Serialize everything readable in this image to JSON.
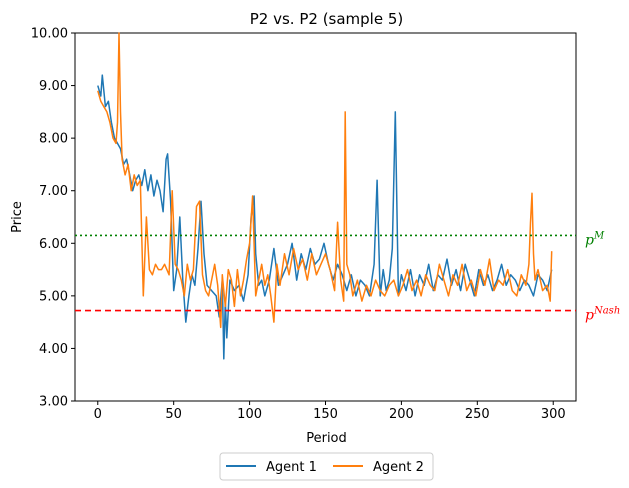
{
  "chart_data": {
    "type": "line",
    "title": "P2 vs. P2 (sample 5)",
    "xlabel": "Period",
    "ylabel": "Price",
    "xlim": [
      -15,
      315
    ],
    "ylim": [
      3.0,
      10.0
    ],
    "xticks": [
      0,
      50,
      100,
      150,
      200,
      250,
      300
    ],
    "xtick_labels": [
      "0",
      "50",
      "100",
      "150",
      "200",
      "250",
      "300"
    ],
    "yticks": [
      3,
      4,
      5,
      6,
      7,
      8,
      9,
      10
    ],
    "ytick_labels": [
      "3.00",
      "4.00",
      "5.00",
      "6.00",
      "7.00",
      "8.00",
      "9.00",
      "10.00"
    ],
    "legend_position": "bottom-center",
    "reference_lines": [
      {
        "name": "monopoly",
        "label_base": "p",
        "label_sup": "M",
        "y": 6.15,
        "color": "#008000",
        "style": "dotted"
      },
      {
        "name": "nash",
        "label_base": "p",
        "label_sup": "Nash",
        "y": 4.72,
        "color": "#ff0000",
        "style": "dashed"
      }
    ],
    "series": [
      {
        "name": "Agent 1",
        "color": "#1f77b4",
        "x": [
          0,
          2,
          3,
          5,
          7,
          9,
          11,
          13,
          15,
          17,
          19,
          21,
          23,
          25,
          27,
          29,
          31,
          33,
          35,
          37,
          39,
          41,
          43,
          45,
          46,
          48,
          50,
          52,
          54,
          56,
          58,
          60,
          62,
          64,
          66,
          68,
          70,
          72,
          75,
          78,
          80,
          82,
          83,
          84,
          85,
          87,
          90,
          93,
          96,
          99,
          101,
          103,
          104,
          106,
          108,
          110,
          113,
          116,
          119,
          122,
          125,
          128,
          131,
          134,
          137,
          140,
          143,
          146,
          149,
          152,
          155,
          158,
          161,
          164,
          167,
          170,
          173,
          176,
          179,
          182,
          184,
          186,
          188,
          190,
          192,
          194,
          196,
          198,
          200,
          203,
          206,
          209,
          212,
          215,
          218,
          221,
          224,
          227,
          230,
          233,
          236,
          239,
          242,
          245,
          248,
          251,
          254,
          257,
          260,
          263,
          266,
          269,
          272,
          275,
          278,
          281,
          284,
          287,
          290,
          293,
          296,
          299
        ],
        "values": [
          9.0,
          8.8,
          9.2,
          8.6,
          8.7,
          8.3,
          8.0,
          7.9,
          7.8,
          7.5,
          7.6,
          7.3,
          7.0,
          7.2,
          7.3,
          7.1,
          7.4,
          7.0,
          7.3,
          6.9,
          7.2,
          7.0,
          6.6,
          7.6,
          7.7,
          6.8,
          5.1,
          5.5,
          6.5,
          5.3,
          4.5,
          5.0,
          5.4,
          5.2,
          5.9,
          6.8,
          5.8,
          5.2,
          5.1,
          5.0,
          4.6,
          5.3,
          3.8,
          4.9,
          4.2,
          5.3,
          5.1,
          5.2,
          4.9,
          5.4,
          6.5,
          6.9,
          5.8,
          5.2,
          5.3,
          5.0,
          5.3,
          5.9,
          5.2,
          5.4,
          5.6,
          6.0,
          5.3,
          5.8,
          5.5,
          5.9,
          5.6,
          5.7,
          6.0,
          5.6,
          5.3,
          5.6,
          5.4,
          5.1,
          5.4,
          5.0,
          5.3,
          5.2,
          5.0,
          5.6,
          7.2,
          5.0,
          5.5,
          5.1,
          5.3,
          5.9,
          8.5,
          5.0,
          5.4,
          5.1,
          5.5,
          5.0,
          5.4,
          5.2,
          5.6,
          5.1,
          5.4,
          5.3,
          5.7,
          5.2,
          5.5,
          5.1,
          5.6,
          5.3,
          5.0,
          5.5,
          5.2,
          5.4,
          5.1,
          5.3,
          5.6,
          5.2,
          5.4,
          5.3,
          5.1,
          5.3,
          5.2,
          5.0,
          5.4,
          5.3,
          5.1,
          5.5
        ]
      },
      {
        "name": "Agent 2",
        "color": "#ff7f0e",
        "x": [
          0,
          2,
          4,
          6,
          8,
          10,
          12,
          13,
          14,
          15,
          16,
          18,
          20,
          22,
          24,
          26,
          28,
          30,
          32,
          34,
          36,
          38,
          40,
          42,
          44,
          47,
          49,
          51,
          53,
          55,
          57,
          59,
          61,
          63,
          65,
          67,
          69,
          71,
          73,
          75,
          77,
          79,
          81,
          82,
          84,
          86,
          88,
          90,
          92,
          94,
          96,
          98,
          100,
          102,
          104,
          106,
          108,
          110,
          112,
          114,
          116,
          118,
          120,
          123,
          126,
          129,
          132,
          135,
          138,
          141,
          144,
          147,
          150,
          153,
          156,
          158,
          160,
          162,
          163,
          164,
          166,
          168,
          171,
          174,
          177,
          180,
          183,
          186,
          189,
          192,
          195,
          198,
          201,
          204,
          207,
          210,
          213,
          216,
          219,
          222,
          225,
          228,
          231,
          234,
          237,
          240,
          243,
          246,
          249,
          252,
          255,
          258,
          261,
          264,
          267,
          270,
          273,
          276,
          279,
          282,
          284,
          285,
          286,
          287,
          288,
          290,
          293,
          296,
          298,
          299
        ],
        "values": [
          8.9,
          8.7,
          8.6,
          8.5,
          8.3,
          8.0,
          7.9,
          8.3,
          10.0,
          8.5,
          7.6,
          7.3,
          7.5,
          7.0,
          7.3,
          7.1,
          7.2,
          5.0,
          6.5,
          5.5,
          5.4,
          5.6,
          5.5,
          5.5,
          5.6,
          5.4,
          7.0,
          5.6,
          5.5,
          5.3,
          5.0,
          5.6,
          5.3,
          5.5,
          6.7,
          6.8,
          5.4,
          5.1,
          5.0,
          5.3,
          5.6,
          5.2,
          4.4,
          5.4,
          4.8,
          5.5,
          5.3,
          4.8,
          5.5,
          5.0,
          5.3,
          5.7,
          6.0,
          6.9,
          5.0,
          5.3,
          5.6,
          5.2,
          5.4,
          5.0,
          4.5,
          5.6,
          5.2,
          5.8,
          5.4,
          5.9,
          5.5,
          5.7,
          5.3,
          5.8,
          5.4,
          5.6,
          5.8,
          5.5,
          5.1,
          6.4,
          5.3,
          4.9,
          8.5,
          5.6,
          5.4,
          5.0,
          5.3,
          4.9,
          5.2,
          5.0,
          5.3,
          5.1,
          5.0,
          5.2,
          5.3,
          5.0,
          5.2,
          5.5,
          5.1,
          5.3,
          5.0,
          5.4,
          5.2,
          5.1,
          5.6,
          5.3,
          5.0,
          5.4,
          5.2,
          5.6,
          5.1,
          5.3,
          5.0,
          5.5,
          5.2,
          5.7,
          5.1,
          5.3,
          5.2,
          5.5,
          5.1,
          5.0,
          5.4,
          5.2,
          5.6,
          6.4,
          6.95,
          5.8,
          5.3,
          5.5,
          5.1,
          5.2,
          4.9,
          5.85
        ]
      }
    ]
  }
}
